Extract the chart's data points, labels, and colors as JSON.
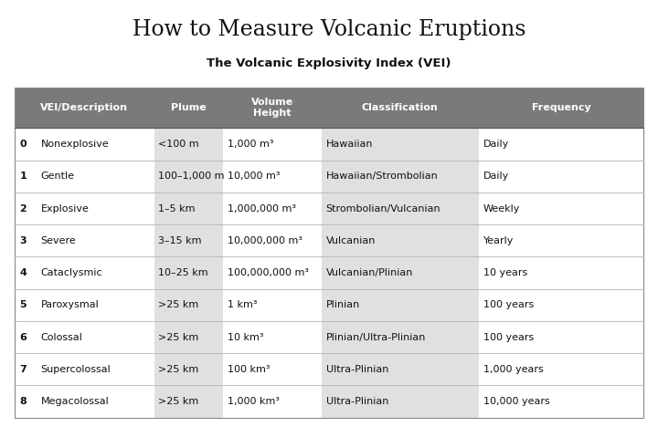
{
  "title": "How to Measure Volcanic Eruptions",
  "subtitle": "The Volcanic Explosivity Index (VEI)",
  "bg_color": "#ffffff",
  "header_bg": "#7a7a7a",
  "header_text_color": "#ffffff",
  "shaded_col_color": "#e0e0e0",
  "white_col_color": "#ffffff",
  "line_color": "#bbbbbb",
  "columns": [
    "VEI/Description",
    "Plume",
    "Volume\nHeight",
    "Classification",
    "Frequency"
  ],
  "col_starts": [
    0.0,
    0.222,
    0.332,
    0.488,
    0.738
  ],
  "col_ends": [
    0.222,
    0.332,
    0.488,
    0.738,
    1.0
  ],
  "shaded_cols": [
    1,
    3
  ],
  "rows": [
    {
      "vei": "0",
      "desc": "Nonexplosive",
      "plume": "<100 m",
      "volume": "1,000 m³",
      "class": "Hawaiian",
      "freq": "Daily"
    },
    {
      "vei": "1",
      "desc": "Gentle",
      "plume": "100–1,000 m",
      "volume": "10,000 m³",
      "class": "Hawaiian/Strombolian",
      "freq": "Daily"
    },
    {
      "vei": "2",
      "desc": "Explosive",
      "plume": "1–5 km",
      "volume": "1,000,000 m³",
      "class": "Strombolian/Vulcanian",
      "freq": "Weekly"
    },
    {
      "vei": "3",
      "desc": "Severe",
      "plume": "3–15 km",
      "volume": "10,000,000 m³",
      "class": "Vulcanian",
      "freq": "Yearly"
    },
    {
      "vei": "4",
      "desc": "Cataclysmic",
      "plume": "10–25 km",
      "volume": "100,000,000 m³",
      "class": "Vulcanian/Plinian",
      "freq": "10 years"
    },
    {
      "vei": "5",
      "desc": "Paroxysmal",
      "plume": ">25 km",
      "volume": "1 km³",
      "class": "Plinian",
      "freq": "100 years"
    },
    {
      "vei": "6",
      "desc": "Colossal",
      "plume": ">25 km",
      "volume": "10 km³",
      "class": "Plinian/Ultra-Plinian",
      "freq": "100 years"
    },
    {
      "vei": "7",
      "desc": "Supercolossal",
      "plume": ">25 km",
      "volume": "100 km³",
      "class": "Ultra-Plinian",
      "freq": "1,000 years"
    },
    {
      "vei": "8",
      "desc": "Megacolossal",
      "plume": ">25 km",
      "volume": "1,000 km³",
      "class": "Ultra-Plinian",
      "freq": "10,000 years"
    }
  ],
  "title_fontsize": 17,
  "subtitle_fontsize": 9.5,
  "header_fontsize": 8,
  "cell_fontsize": 8
}
